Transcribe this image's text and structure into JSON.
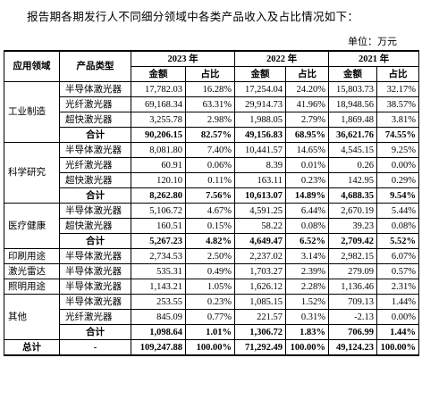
{
  "intro": "报告期各期发行人不同细分领域中各类产品收入及占比情况如下：",
  "unit": "单位：万元",
  "header": {
    "domain": "应用领域",
    "product": "产品类型",
    "years": [
      "2023 年",
      "2022 年",
      "2021 年"
    ],
    "amount": "金额",
    "share": "占比"
  },
  "groups": [
    {
      "domain": "工业制造",
      "rows": [
        [
          "半导体激光器",
          "17,782.03",
          "16.28%",
          "17,254.04",
          "24.20%",
          "15,803.73",
          "32.17%"
        ],
        [
          "光纤激光器",
          "69,168.34",
          "63.31%",
          "29,914.73",
          "41.96%",
          "18,948.56",
          "38.57%"
        ],
        [
          "超快激光器",
          "3,255.78",
          "2.98%",
          "1,988.05",
          "2.79%",
          "1,869.48",
          "3.81%"
        ]
      ],
      "subtotal": [
        "合计",
        "90,206.15",
        "82.57%",
        "49,156.83",
        "68.95%",
        "36,621.76",
        "74.55%"
      ]
    },
    {
      "domain": "科学研究",
      "rows": [
        [
          "半导体激光器",
          "8,081.80",
          "7.40%",
          "10,441.57",
          "14.65%",
          "4,545.15",
          "9.25%"
        ],
        [
          "光纤激光器",
          "60.91",
          "0.06%",
          "8.39",
          "0.01%",
          "0.26",
          "0.00%"
        ],
        [
          "超快激光器",
          "120.10",
          "0.11%",
          "163.11",
          "0.23%",
          "142.95",
          "0.29%"
        ]
      ],
      "subtotal": [
        "合计",
        "8,262.80",
        "7.56%",
        "10,613.07",
        "14.89%",
        "4,688.35",
        "9.54%"
      ]
    },
    {
      "domain": "医疗健康",
      "rows": [
        [
          "半导体激光器",
          "5,106.72",
          "4.67%",
          "4,591.25",
          "6.44%",
          "2,670.19",
          "5.44%"
        ],
        [
          "超快激光器",
          "160.51",
          "0.15%",
          "58.22",
          "0.08%",
          "39.23",
          "0.08%"
        ]
      ],
      "subtotal": [
        "合计",
        "5,267.23",
        "4.82%",
        "4,649.47",
        "6.52%",
        "2,709.42",
        "5.52%"
      ]
    },
    {
      "domain": "印刷用途",
      "rows": [
        [
          "半导体激光器",
          "2,734.53",
          "2.50%",
          "2,237.02",
          "3.14%",
          "2,982.15",
          "6.07%"
        ]
      ]
    },
    {
      "domain": "激光雷达",
      "rows": [
        [
          "半导体激光器",
          "535.31",
          "0.49%",
          "1,703.27",
          "2.39%",
          "279.09",
          "0.57%"
        ]
      ]
    },
    {
      "domain": "照明用途",
      "rows": [
        [
          "半导体激光器",
          "1,143.21",
          "1.05%",
          "1,626.12",
          "2.28%",
          "1,136.46",
          "2.31%"
        ]
      ]
    },
    {
      "domain": "其他",
      "rows": [
        [
          "半导体激光器",
          "253.55",
          "0.23%",
          "1,085.15",
          "1.52%",
          "709.13",
          "1.44%"
        ],
        [
          "光纤激光器",
          "845.09",
          "0.77%",
          "221.57",
          "0.31%",
          "-2.13",
          "0.00%"
        ]
      ],
      "subtotal": [
        "合计",
        "1,098.64",
        "1.01%",
        "1,306.72",
        "1.83%",
        "706.99",
        "1.44%"
      ]
    }
  ],
  "total": [
    "总计",
    "-",
    "109,247.88",
    "100.00%",
    "71,292.49",
    "100.00%",
    "49,124.23",
    "100.00%"
  ]
}
